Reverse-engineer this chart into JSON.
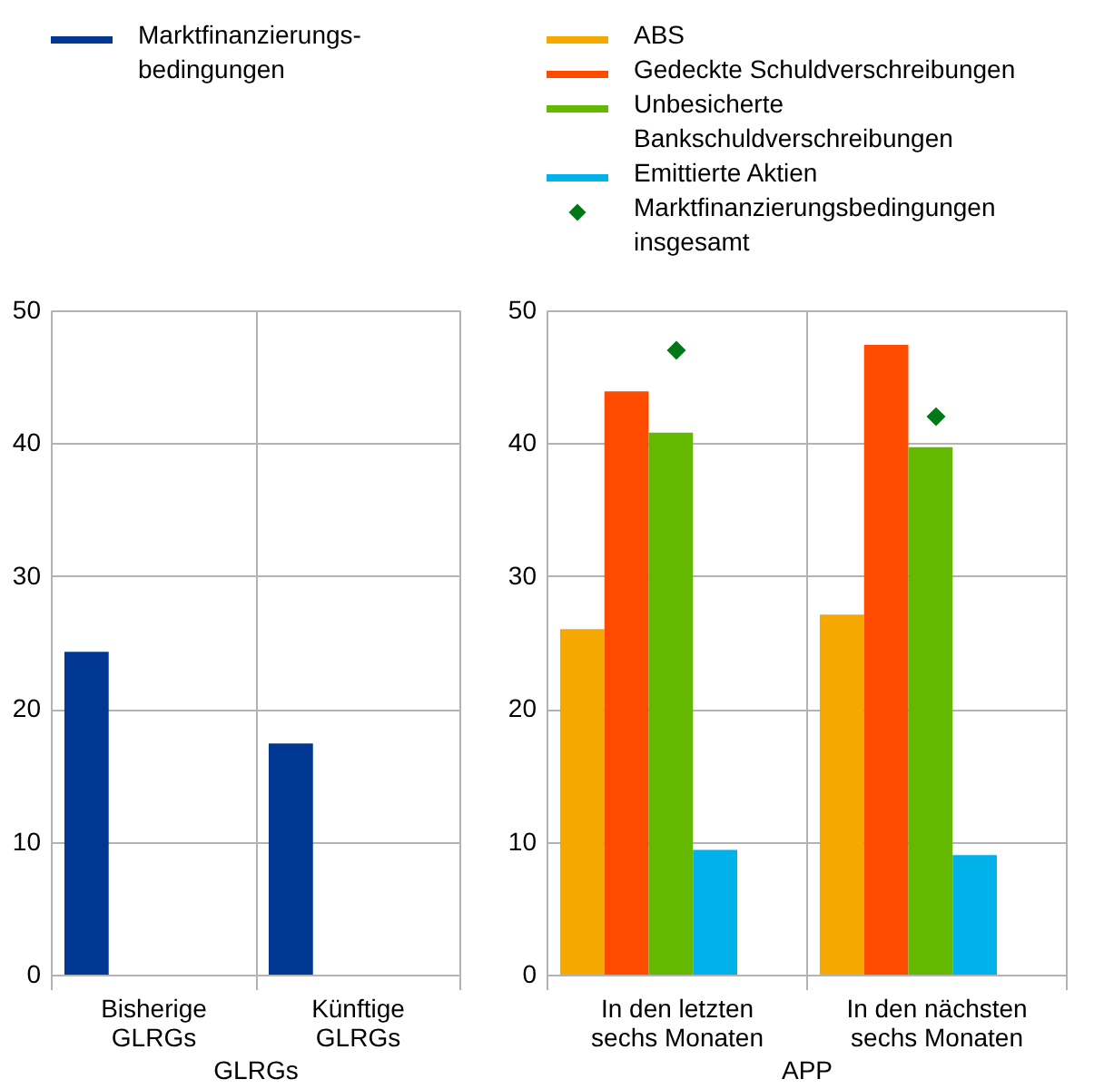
{
  "chart_data": [
    {
      "type": "bar",
      "categories": [
        "Bisherige\nGLRGs",
        "Künftige\nGLRGs"
      ],
      "xlabel": "GLRGs",
      "ylim": [
        0,
        50
      ],
      "yticks": [
        0,
        10,
        20,
        30,
        40,
        50
      ],
      "grid": true,
      "legend": "top left",
      "series": [
        {
          "name": "Marktfinanzierungs-\nbedingungen",
          "color": "#003894",
          "values": [
            24.3,
            17.4
          ]
        }
      ]
    },
    {
      "type": "bar",
      "categories": [
        "In den letzten\nsechs Monaten",
        "In den nächsten\nsechs Monaten"
      ],
      "xlabel": "APP",
      "ylim": [
        0,
        50
      ],
      "yticks": [
        0,
        10,
        20,
        30,
        40,
        50
      ],
      "grid": true,
      "legend": "top left",
      "series": [
        {
          "name": "ABS",
          "color": "#f5a800",
          "values": [
            26.0,
            27.1
          ]
        },
        {
          "name": "Gedeckte Schuldverschreibungen",
          "color": "#ff4b00",
          "values": [
            43.9,
            47.4
          ]
        },
        {
          "name": "Unbesicherte\nBankschuldverschreibungen",
          "color": "#65b800",
          "values": [
            40.8,
            39.7
          ]
        },
        {
          "name": "Emittierte Aktien",
          "color": "#00b1ea",
          "values": [
            9.4,
            9.0
          ]
        },
        {
          "name": "Marktfinanzierungsbedingungen\ninsgesamt",
          "color": "#007816",
          "type": "scatter",
          "marker": "diamond",
          "x": [
            "In den letzten\nsechs Monaten",
            "In den nächsten\nsechs Monaten"
          ],
          "values": [
            47.0,
            42.0
          ]
        }
      ]
    }
  ]
}
